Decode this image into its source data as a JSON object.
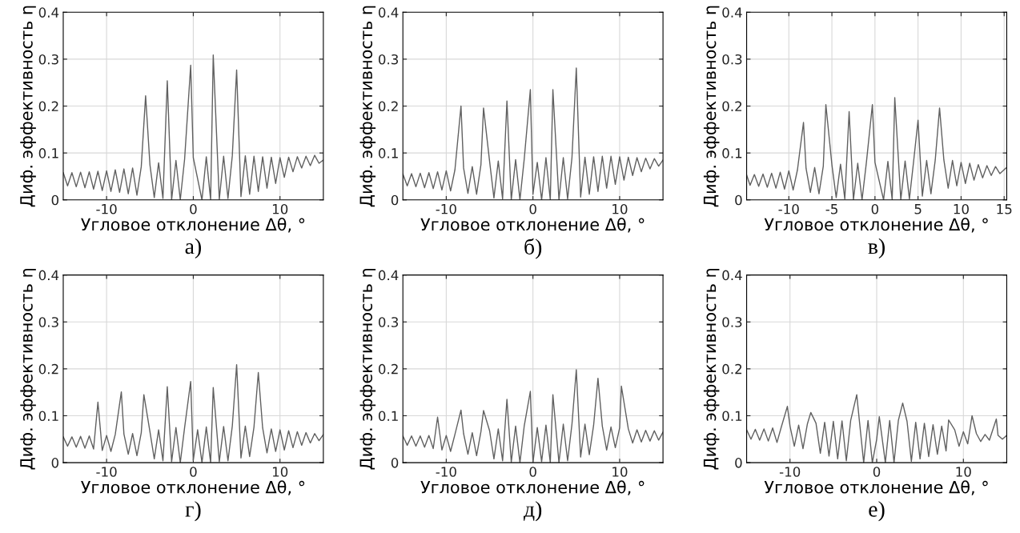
{
  "chart_data": [
    {
      "type": "line",
      "xlabel": "Угловое отклонение Δθ, °",
      "ylabel": "Диф. эффективность η",
      "annotations": [
        "а)"
      ],
      "xlim": [
        -15,
        15
      ],
      "ylim": [
        0,
        0.4
      ],
      "xticks": [
        -10,
        0,
        10
      ],
      "yticks": [
        0,
        0.1,
        0.2,
        0.3,
        0.4
      ],
      "grid": true,
      "series": [
        {
          "color": "#606060",
          "x": [
            -15,
            -14.5,
            -14,
            -13.5,
            -13,
            -12.5,
            -12,
            -11.5,
            -11,
            -10.5,
            -10,
            -9.5,
            -9,
            -8.5,
            -8,
            -7.5,
            -7,
            -6.5,
            -6,
            -5.5,
            -5,
            -4.5,
            -4,
            -3.5,
            -3,
            -2.5,
            -2,
            -1.5,
            -1,
            -0.3,
            0,
            0.5,
            1,
            1.5,
            2,
            2.3,
            3,
            3.5,
            4,
            4.5,
            5,
            5.5,
            6,
            6.5,
            7,
            7.5,
            8,
            8.5,
            9,
            9.5,
            10,
            10.5,
            11,
            11.5,
            12,
            12.5,
            13,
            13.5,
            14,
            14.5,
            15
          ],
          "values": [
            0.058,
            0.03,
            0.058,
            0.028,
            0.059,
            0.026,
            0.06,
            0.023,
            0.061,
            0.02,
            0.062,
            0.018,
            0.064,
            0.016,
            0.066,
            0.013,
            0.068,
            0.01,
            0.071,
            0.222,
            0.075,
            0.005,
            0.079,
            0.003,
            0.254,
            0,
            0.084,
            0,
            0.087,
            0.287,
            0.09,
            0.045,
            0,
            0.092,
            0,
            0.309,
            0.001,
            0.093,
            0.003,
            0.094,
            0.277,
            0.007,
            0.094,
            0.012,
            0.093,
            0.018,
            0.092,
            0.025,
            0.091,
            0.035,
            0.09,
            0.048,
            0.091,
            0.06,
            0.092,
            0.068,
            0.093,
            0.073,
            0.095,
            0.078,
            0.085
          ]
        }
      ]
    },
    {
      "type": "line",
      "xlabel": "Угловое отклонение Δθ, °",
      "ylabel": "Диф. эффективность η",
      "annotations": [
        "б)"
      ],
      "xlim": [
        -15,
        15
      ],
      "ylim": [
        0,
        0.4
      ],
      "xticks": [
        -10,
        0,
        10
      ],
      "yticks": [
        0,
        0.1,
        0.2,
        0.3,
        0.4
      ],
      "grid": true,
      "series": [
        {
          "color": "#606060",
          "x": [
            -15,
            -14.5,
            -14,
            -13.5,
            -13,
            -12.5,
            -12,
            -11.5,
            -11,
            -10.5,
            -10,
            -9.5,
            -9,
            -8.3,
            -8,
            -7.5,
            -7,
            -6.5,
            -6,
            -5.7,
            -5,
            -4.5,
            -4,
            -3.5,
            -3,
            -2.5,
            -2,
            -1.5,
            -1,
            -0.3,
            0,
            0.5,
            1,
            1.5,
            2,
            2.3,
            3,
            3.5,
            4,
            4.5,
            5,
            5.5,
            6,
            6.5,
            7,
            7.5,
            8,
            8.5,
            9,
            9.5,
            10,
            10.5,
            11,
            11.5,
            12,
            12.5,
            13,
            13.5,
            14,
            14.5,
            15
          ],
          "values": [
            0.055,
            0.03,
            0.056,
            0.028,
            0.057,
            0.026,
            0.058,
            0.024,
            0.06,
            0.021,
            0.062,
            0.019,
            0.064,
            0.2,
            0.068,
            0.014,
            0.071,
            0.012,
            0.075,
            0.196,
            0.082,
            0.004,
            0.083,
            0.002,
            0.211,
            0,
            0.086,
            0,
            0.088,
            0.235,
            0.012,
            0.08,
            0,
            0.09,
            0,
            0.235,
            0,
            0.09,
            0.002,
            0.09,
            0.281,
            0.006,
            0.091,
            0.012,
            0.092,
            0.018,
            0.093,
            0.025,
            0.093,
            0.033,
            0.092,
            0.042,
            0.091,
            0.052,
            0.09,
            0.06,
            0.089,
            0.066,
            0.088,
            0.072,
            0.085
          ]
        }
      ]
    },
    {
      "type": "line",
      "xlabel": "Угловое отклонение Δθ, °",
      "ylabel": "Диф. эффективность η",
      "annotations": [
        "в)"
      ],
      "xlim": [
        -14.9,
        15.3
      ],
      "ylim": [
        0,
        0.4
      ],
      "xticks": [
        -10,
        -5,
        0,
        5,
        10,
        15
      ],
      "yticks": [
        0,
        0.1,
        0.2,
        0.3,
        0.4
      ],
      "grid": true,
      "series": [
        {
          "color": "#606060",
          "x": [
            -14.9,
            -14.5,
            -14,
            -13.5,
            -13,
            -12.5,
            -12,
            -11.5,
            -11,
            -10.5,
            -10,
            -9.5,
            -9,
            -8.3,
            -8,
            -7.5,
            -7,
            -6.5,
            -6,
            -5.7,
            -5,
            -4.5,
            -4,
            -3.5,
            -3,
            -2.5,
            -2,
            -1.5,
            -1,
            -0.3,
            0,
            0.5,
            1,
            1.5,
            2,
            2.3,
            3,
            3.5,
            4,
            4.5,
            5,
            5.5,
            6,
            6.5,
            7,
            7.5,
            8,
            8.5,
            9,
            9.5,
            10,
            10.5,
            11,
            11.5,
            12,
            12.5,
            13,
            13.5,
            14,
            14.5,
            15.2
          ],
          "values": [
            0.053,
            0.031,
            0.054,
            0.029,
            0.055,
            0.027,
            0.057,
            0.025,
            0.059,
            0.023,
            0.062,
            0.021,
            0.064,
            0.165,
            0.067,
            0.016,
            0.069,
            0.013,
            0.072,
            0.203,
            0.075,
            0.005,
            0.076,
            0.002,
            0.188,
            0,
            0.078,
            0,
            0.079,
            0.203,
            0.08,
            0.04,
            0,
            0.082,
            0,
            0.218,
            0,
            0.083,
            0.002,
            0.084,
            0.17,
            0.008,
            0.084,
            0.013,
            0.085,
            0.196,
            0.085,
            0.025,
            0.084,
            0.03,
            0.08,
            0.035,
            0.078,
            0.042,
            0.075,
            0.047,
            0.073,
            0.052,
            0.071,
            0.056,
            0.068
          ]
        }
      ]
    },
    {
      "type": "line",
      "xlabel": "Угловое отклонение Δθ, °",
      "ylabel": "Диф. эффективность η",
      "annotations": [
        "г)"
      ],
      "xlim": [
        -15,
        15
      ],
      "ylim": [
        0,
        0.4
      ],
      "xticks": [
        -10,
        0,
        10
      ],
      "yticks": [
        0,
        0.1,
        0.2,
        0.3,
        0.4
      ],
      "grid": true,
      "series": [
        {
          "color": "#606060",
          "x": [
            -15,
            -14.5,
            -14,
            -13.5,
            -13,
            -12.5,
            -12,
            -11.5,
            -11,
            -10.5,
            -10,
            -9.5,
            -9,
            -8.3,
            -8,
            -7.5,
            -7,
            -6.5,
            -6,
            -5.7,
            -5,
            -4.5,
            -4,
            -3.5,
            -3,
            -2.5,
            -2,
            -1.5,
            -1,
            -0.3,
            0,
            0.5,
            1,
            1.5,
            2,
            2.3,
            3,
            3.5,
            4,
            4.5,
            5,
            5.5,
            6,
            6.5,
            7,
            7.5,
            8,
            8.5,
            9,
            9.5,
            10,
            10.5,
            11,
            11.5,
            12,
            12.5,
            13,
            13.5,
            14,
            14.5,
            15
          ],
          "values": [
            0.055,
            0.035,
            0.055,
            0.033,
            0.056,
            0.031,
            0.057,
            0.029,
            0.129,
            0.026,
            0.058,
            0.024,
            0.06,
            0.151,
            0.061,
            0.018,
            0.062,
            0.015,
            0.064,
            0.145,
            0.066,
            0.008,
            0.07,
            0.004,
            0.162,
            0.002,
            0.075,
            0,
            0.075,
            0.173,
            0.005,
            0.07,
            0,
            0.076,
            0,
            0.16,
            0.002,
            0.077,
            0.004,
            0.078,
            0.209,
            0.01,
            0.078,
            0.013,
            0.076,
            0.192,
            0.074,
            0.021,
            0.072,
            0.024,
            0.07,
            0.027,
            0.068,
            0.032,
            0.066,
            0.037,
            0.064,
            0.042,
            0.062,
            0.047,
            0.06
          ]
        }
      ]
    },
    {
      "type": "line",
      "xlabel": "Угловое отклонение Δθ, °",
      "ylabel": "Диф. эффективность η",
      "annotations": [
        "д)"
      ],
      "xlim": [
        -15,
        15
      ],
      "ylim": [
        0,
        0.4
      ],
      "xticks": [
        -10,
        0,
        10
      ],
      "yticks": [
        0,
        0.1,
        0.2,
        0.3,
        0.4
      ],
      "grid": true,
      "series": [
        {
          "color": "#606060",
          "x": [
            -15,
            -14.5,
            -14,
            -13.5,
            -13,
            -12.5,
            -12,
            -11.5,
            -11,
            -10.5,
            -10,
            -9.5,
            -9,
            -8.3,
            -8,
            -7.5,
            -7,
            -6.5,
            -6,
            -5.7,
            -5,
            -4.5,
            -4,
            -3.5,
            -3,
            -2.5,
            -2,
            -1.5,
            -1,
            -0.3,
            0,
            0.5,
            1,
            1.5,
            2,
            2.3,
            3,
            3.5,
            4,
            4.5,
            5,
            5.5,
            6,
            6.5,
            7,
            7.5,
            8,
            8.5,
            9,
            9.5,
            10,
            10.2,
            11,
            11.5,
            12,
            12.5,
            13,
            13.5,
            14,
            14.5,
            15
          ],
          "values": [
            0.057,
            0.037,
            0.057,
            0.035,
            0.057,
            0.033,
            0.058,
            0.03,
            0.097,
            0.027,
            0.058,
            0.024,
            0.06,
            0.112,
            0.062,
            0.018,
            0.064,
            0.015,
            0.066,
            0.111,
            0.068,
            0.008,
            0.072,
            0.004,
            0.135,
            0.001,
            0.078,
            0,
            0.079,
            0.152,
            0,
            0.075,
            0.002,
            0.08,
            0,
            0.145,
            0,
            0.082,
            0.004,
            0.082,
            0.198,
            0.012,
            0.082,
            0.017,
            0.08,
            0.18,
            0.078,
            0.027,
            0.076,
            0.032,
            0.074,
            0.163,
            0.072,
            0.042,
            0.07,
            0.044,
            0.069,
            0.046,
            0.068,
            0.048,
            0.065
          ]
        }
      ]
    },
    {
      "type": "line",
      "xlabel": "Угловое отклонение Δθ, °",
      "ylabel": "Диф. эффективность η",
      "annotations": [
        "е)"
      ],
      "xlim": [
        -15,
        15
      ],
      "ylim": [
        0,
        0.4
      ],
      "xticks": [
        -10,
        0,
        10
      ],
      "yticks": [
        0,
        0.1,
        0.2,
        0.3,
        0.4
      ],
      "grid": true,
      "series": [
        {
          "color": "#606060",
          "x": [
            -15,
            -14.5,
            -14,
            -13.5,
            -13,
            -12.5,
            -12,
            -11.5,
            -11,
            -10.3,
            -10,
            -9.5,
            -9,
            -8.5,
            -8,
            -7.6,
            -7,
            -6.5,
            -6,
            -5.5,
            -5,
            -4.5,
            -4,
            -3.5,
            -3,
            -2.3,
            -2,
            -1.5,
            -1,
            -0.5,
            0,
            0.3,
            1,
            1.5,
            2,
            2.5,
            3,
            3.5,
            4,
            4.5,
            5,
            5.5,
            6,
            6.5,
            7,
            7.5,
            8,
            8.3,
            9,
            9.5,
            10,
            10.5,
            11,
            11.5,
            12,
            12.5,
            13,
            13.8,
            14,
            14.5,
            15
          ],
          "values": [
            0.07,
            0.05,
            0.071,
            0.048,
            0.072,
            0.046,
            0.074,
            0.043,
            0.076,
            0.12,
            0.078,
            0.035,
            0.08,
            0.03,
            0.082,
            0.107,
            0.084,
            0.02,
            0.086,
            0.014,
            0.088,
            0.008,
            0.089,
            0.004,
            0.09,
            0.145,
            0.09,
            0,
            0.09,
            0,
            0.05,
            0.098,
            0,
            0.09,
            0,
            0.09,
            0.127,
            0.088,
            0.003,
            0.086,
            0.008,
            0.084,
            0.013,
            0.081,
            0.018,
            0.078,
            0.025,
            0.091,
            0.07,
            0.035,
            0.066,
            0.04,
            0.1,
            0.062,
            0.045,
            0.06,
            0.048,
            0.093,
            0.058,
            0.05,
            0.058
          ]
        }
      ]
    }
  ]
}
